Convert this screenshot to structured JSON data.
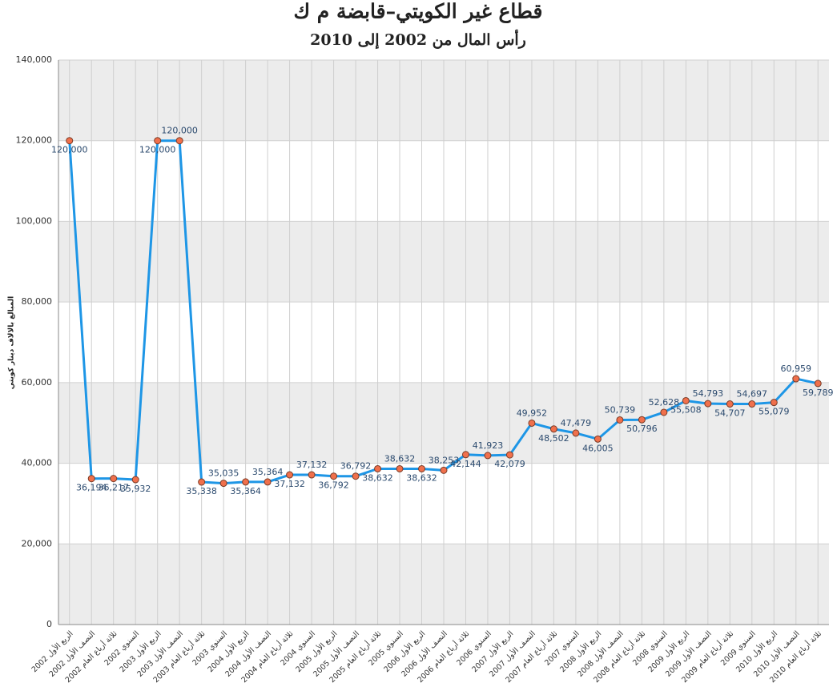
{
  "chart_data": {
    "type": "line",
    "title": "قطاع غير الكويتي–قابضة م ك",
    "subtitle": "رأس المال من 2002 إلى 2010",
    "y_label": "المبالغ بالالاف دينار كويتي",
    "categories": [
      "الربع الأول 2002",
      "النصف الأول 2002",
      "ثلاثة أرباع العام 2002",
      "السنوي 2002",
      "الربع الأول 2003",
      "النصف الأول 2003",
      "ثلاثة أرباع العام 2003",
      "السنوي 2003",
      "الربع الأول 2004",
      "النصف الأول 2004",
      "ثلاثة أرباع العام 2004",
      "السنوي 2004",
      "الربع الأول 2005",
      "النصف الأول 2005",
      "ثلاثة أرباع العام 2005",
      "السنوي 2005",
      "الربع الأول 2006",
      "النصف الأول 2006",
      "ثلاثة أرباع العام 2006",
      "السنوي 2006",
      "الربع الأول 2007",
      "النصف الأول 2007",
      "ثلاثة أرباع العام 2007",
      "السنوي 2007",
      "الربع الأول 2008",
      "النصف الأول 2008",
      "ثلاثة أرباع العام 2008",
      "السنوي 2008",
      "الربع الأول 2009",
      "النصف الأول 2009",
      "ثلاثة أرباع العام 2009",
      "السنوي 2009",
      "الربع الأول 2010",
      "النصف الأول 2010",
      "ثلاثة أرباع العام 2010"
    ],
    "values": [
      120000,
      36194,
      36217,
      35932,
      120000,
      120000,
      35338,
      35035,
      35364,
      35364,
      37132,
      37132,
      36792,
      36792,
      38632,
      38632,
      38632,
      38253,
      42144,
      41923,
      42079,
      49952,
      48502,
      47479,
      46005,
      50739,
      50796,
      52628,
      55508,
      54793,
      54707,
      54697,
      55079,
      60959,
      59789
    ],
    "value_labels": [
      "120,000",
      "36,194",
      "36,217",
      "35,932",
      "120,000",
      "120,000",
      "35,338",
      "35,035",
      "35,364",
      "35,364",
      "37,132",
      "37,132",
      "36,792",
      "36,792",
      "38,632",
      "38,632",
      "38,632",
      "38,253",
      "42,144",
      "41,923",
      "42,079",
      "49,952",
      "48,502",
      "47,479",
      "46,005",
      "50,739",
      "50,796",
      "52,628",
      "55,508",
      "54,793",
      "54,707",
      "54,697",
      "55,079",
      "60,959",
      "59,789"
    ],
    "color": "#1e96e6",
    "marker_color": "#f0704c",
    "ylim": [
      0,
      140000
    ],
    "yticks": [
      0,
      {
        "value": 20000,
        "label": "20,000"
      },
      {
        "value": 40000,
        "label": "40,000"
      },
      {
        "value": 60000,
        "label": "60,000"
      },
      {
        "value": 80000,
        "label": "80,000"
      },
      {
        "value": 100000,
        "label": "100,000"
      },
      {
        "value": 120000,
        "label": "120,000"
      },
      {
        "value": 140000,
        "label": "140,000"
      }
    ],
    "grid": true
  }
}
